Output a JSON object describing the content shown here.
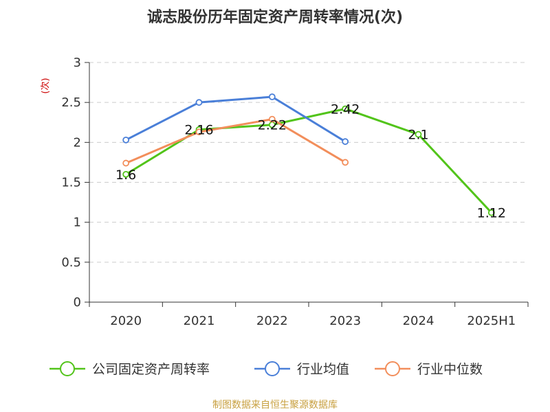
{
  "chart_data": {
    "type": "line",
    "title": "诚志股份历年固定资产周转率情况(次)",
    "ylabel": "(次)",
    "categories": [
      "2020",
      "2021",
      "2022",
      "2023",
      "2024",
      "2025H1"
    ],
    "ylim": [
      0,
      3
    ],
    "yticks": [
      "0",
      "0.5",
      "1",
      "1.5",
      "2",
      "2.5",
      "3"
    ],
    "grid": true,
    "legend_position": "bottom",
    "series": [
      {
        "name": "公司固定资产周转率",
        "color": "#52c41a",
        "values": [
          1.6,
          2.16,
          2.22,
          2.42,
          2.1,
          1.12
        ],
        "labels": [
          "1.6",
          "2.16",
          "2.22",
          "2.42",
          "2.1",
          "1.12"
        ]
      },
      {
        "name": "行业均值",
        "color": "#4a7fd8",
        "values": [
          2.03,
          2.5,
          2.57,
          2.01,
          null,
          null
        ]
      },
      {
        "name": "行业中位数",
        "color": "#f28e5b",
        "values": [
          1.74,
          2.13,
          2.29,
          1.75,
          null,
          null
        ]
      }
    ]
  },
  "source": "制图数据来自恒生聚源数据库",
  "colors": {
    "ylabel": "#cc0000",
    "source": "#c8a040",
    "grid": "#cccccc",
    "axis": "#333333"
  }
}
